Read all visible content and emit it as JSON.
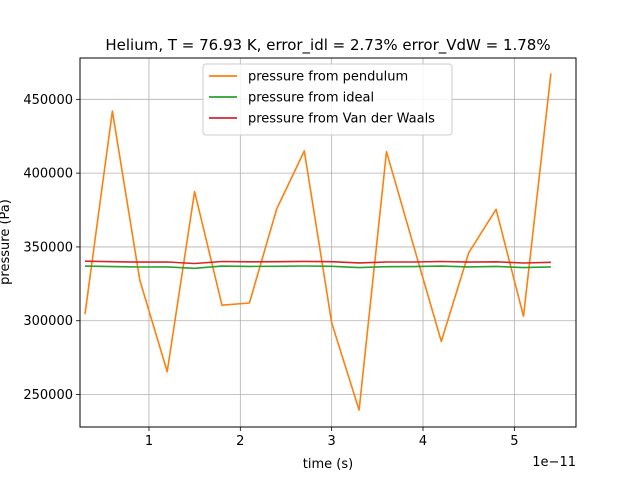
{
  "chart_data": {
    "type": "line",
    "title": "Helium, T = 76.93 K, error_idl = 2.73% error_VdW = 1.78%",
    "xlabel": "time (s)",
    "ylabel": "pressure (Pa)",
    "x_offset_label": "1e−11",
    "xlim": [
      2.45e-12,
      5.675e-11
    ],
    "ylim": [
      228000,
      478000
    ],
    "xticks": [
      1e-11,
      2e-11,
      3e-11,
      4e-11,
      5e-11
    ],
    "xtick_labels": [
      "1",
      "2",
      "3",
      "4",
      "5"
    ],
    "yticks": [
      250000,
      300000,
      350000,
      400000,
      450000
    ],
    "ytick_labels": [
      "250000",
      "300000",
      "350000",
      "400000",
      "450000"
    ],
    "grid": true,
    "legend_position": "top-center",
    "x": [
      3e-12,
      6e-12,
      9e-12,
      1.2e-11,
      1.5e-11,
      1.8e-11,
      2.1e-11,
      2.4e-11,
      2.7e-11,
      3e-11,
      3.3e-11,
      3.6e-11,
      3.9e-11,
      4.2e-11,
      4.5e-11,
      4.8e-11,
      5.1e-11,
      5.4e-11
    ],
    "series": [
      {
        "name": "pressure from pendulum",
        "color": "#ff7f0e",
        "values": [
          304500,
          442000,
          327500,
          265500,
          387500,
          310500,
          312000,
          376000,
          415000,
          298500,
          239500,
          414500,
          350000,
          286000,
          346000,
          375500,
          303000,
          467500
        ]
      },
      {
        "name": "pressure from ideal",
        "color": "#2ca02c",
        "values": [
          337000,
          336700,
          336400,
          336500,
          335500,
          337000,
          336800,
          336900,
          337100,
          336900,
          336000,
          336600,
          336700,
          337000,
          336500,
          336800,
          336000,
          336500
        ]
      },
      {
        "name": "pressure from Van der Waals",
        "color": "#d62728",
        "values": [
          340300,
          340000,
          339700,
          339800,
          338800,
          340100,
          339900,
          340000,
          340200,
          340000,
          339200,
          339800,
          339800,
          340100,
          339700,
          339900,
          339100,
          339600
        ]
      }
    ]
  }
}
